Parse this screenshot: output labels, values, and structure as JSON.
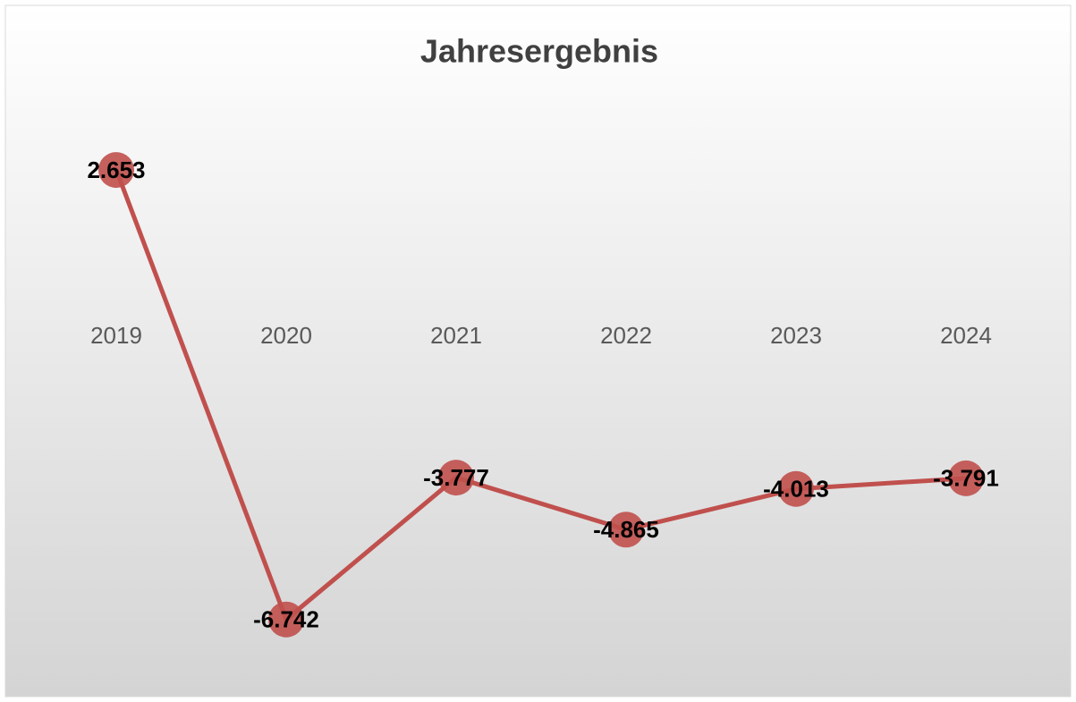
{
  "chart_data": {
    "type": "line",
    "title": "Jahresergebnis",
    "categories": [
      "2019",
      "2020",
      "2021",
      "2022",
      "2023",
      "2024"
    ],
    "values": [
      2653,
      -6742,
      -3777,
      -4865,
      -4013,
      -3791
    ],
    "value_labels": [
      "2.653",
      "-6.742",
      "-3.777",
      "-4.865",
      "-4.013",
      "-3.791"
    ],
    "color": "#c0504d",
    "ylim": [
      -8000,
      4000
    ],
    "yticks": [
      -8000,
      -6000,
      -4000,
      -2000,
      0,
      2000,
      4000
    ],
    "grid": true
  }
}
